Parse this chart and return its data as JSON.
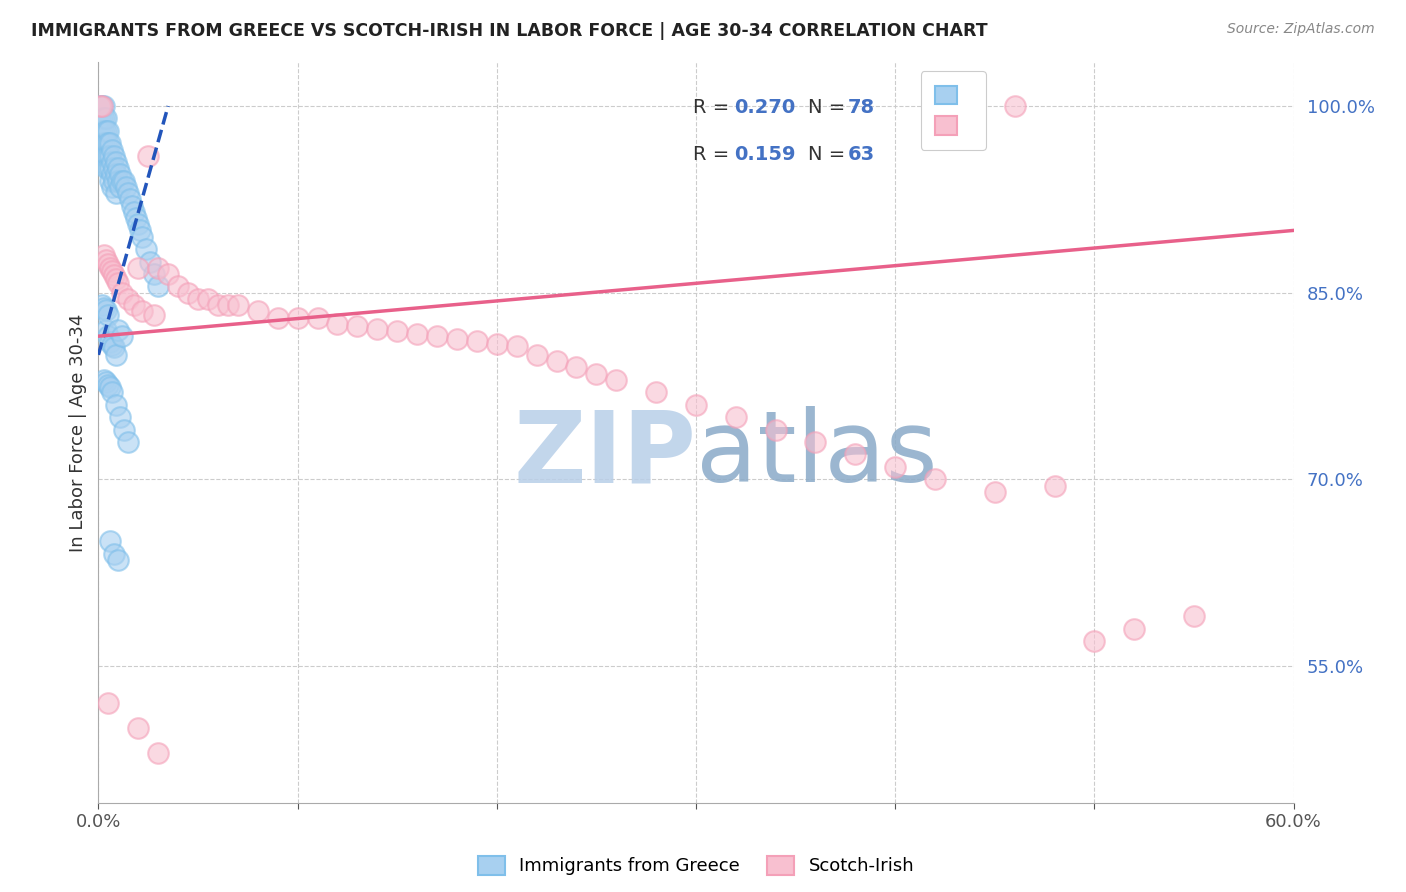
{
  "title": "IMMIGRANTS FROM GREECE VS SCOTCH-IRISH IN LABOR FORCE | AGE 30-34 CORRELATION CHART",
  "source": "Source: ZipAtlas.com",
  "ylabel": "In Labor Force | Age 30-34",
  "xlim": [
    0.0,
    0.6
  ],
  "ylim": [
    0.44,
    1.035
  ],
  "xtick_positions": [
    0.0,
    0.1,
    0.2,
    0.3,
    0.4,
    0.5,
    0.6
  ],
  "xticklabels": [
    "0.0%",
    "",
    "",
    "",
    "",
    "",
    "60.0%"
  ],
  "yticks_right": [
    0.55,
    0.7,
    0.85,
    1.0
  ],
  "ytick_labels_right": [
    "55.0%",
    "70.0%",
    "85.0%",
    "100.0%"
  ],
  "blue_color": "#7fbfea",
  "pink_color": "#f4a0b8",
  "blue_line_color": "#2255bb",
  "pink_line_color": "#e8608a",
  "blue_fill_color": "#a8d0f0",
  "pink_fill_color": "#f8c0d0",
  "watermark_color": "#d0e4f5",
  "watermark_zip_color": "#c0d8f0",
  "watermark_atlas_color": "#90b8d8",
  "greece_x": [
    0.001,
    0.001,
    0.001,
    0.002,
    0.002,
    0.002,
    0.002,
    0.003,
    0.003,
    0.003,
    0.003,
    0.003,
    0.004,
    0.004,
    0.004,
    0.004,
    0.004,
    0.005,
    0.005,
    0.005,
    0.005,
    0.006,
    0.006,
    0.006,
    0.006,
    0.007,
    0.007,
    0.007,
    0.007,
    0.008,
    0.008,
    0.008,
    0.009,
    0.009,
    0.009,
    0.01,
    0.01,
    0.011,
    0.011,
    0.012,
    0.013,
    0.014,
    0.015,
    0.016,
    0.017,
    0.018,
    0.019,
    0.02,
    0.021,
    0.022,
    0.024,
    0.026,
    0.028,
    0.03,
    0.004,
    0.005,
    0.006,
    0.007,
    0.008,
    0.009,
    0.002,
    0.003,
    0.004,
    0.005,
    0.01,
    0.012,
    0.003,
    0.004,
    0.005,
    0.006,
    0.007,
    0.009,
    0.011,
    0.013,
    0.015,
    0.006,
    0.008,
    0.01
  ],
  "greece_y": [
    1.0,
    0.99,
    0.98,
    1.0,
    0.99,
    0.98,
    0.97,
    1.0,
    0.99,
    0.98,
    0.97,
    0.96,
    0.99,
    0.98,
    0.97,
    0.96,
    0.95,
    0.98,
    0.97,
    0.96,
    0.95,
    0.97,
    0.96,
    0.95,
    0.94,
    0.965,
    0.955,
    0.945,
    0.935,
    0.96,
    0.95,
    0.94,
    0.955,
    0.945,
    0.93,
    0.95,
    0.94,
    0.945,
    0.935,
    0.94,
    0.94,
    0.935,
    0.93,
    0.925,
    0.92,
    0.915,
    0.91,
    0.905,
    0.9,
    0.895,
    0.885,
    0.875,
    0.865,
    0.855,
    0.82,
    0.815,
    0.81,
    0.808,
    0.806,
    0.8,
    0.84,
    0.838,
    0.836,
    0.832,
    0.82,
    0.815,
    0.78,
    0.778,
    0.776,
    0.774,
    0.77,
    0.76,
    0.75,
    0.74,
    0.73,
    0.65,
    0.64,
    0.635
  ],
  "scotch_x": [
    0.001,
    0.002,
    0.003,
    0.004,
    0.005,
    0.006,
    0.007,
    0.008,
    0.009,
    0.01,
    0.012,
    0.015,
    0.018,
    0.02,
    0.022,
    0.025,
    0.028,
    0.03,
    0.035,
    0.04,
    0.045,
    0.05,
    0.055,
    0.06,
    0.065,
    0.07,
    0.08,
    0.09,
    0.1,
    0.11,
    0.12,
    0.13,
    0.14,
    0.15,
    0.16,
    0.17,
    0.18,
    0.19,
    0.2,
    0.21,
    0.22,
    0.23,
    0.24,
    0.25,
    0.26,
    0.28,
    0.3,
    0.32,
    0.34,
    0.36,
    0.38,
    0.4,
    0.42,
    0.45,
    0.48,
    0.5,
    0.52,
    0.55,
    0.42,
    0.46,
    0.005,
    0.02,
    0.03
  ],
  "scotch_y": [
    1.0,
    1.0,
    0.88,
    0.876,
    0.873,
    0.87,
    0.867,
    0.864,
    0.861,
    0.858,
    0.85,
    0.845,
    0.84,
    0.87,
    0.835,
    0.96,
    0.832,
    0.87,
    0.865,
    0.855,
    0.85,
    0.845,
    0.845,
    0.84,
    0.84,
    0.84,
    0.835,
    0.83,
    0.83,
    0.83,
    0.825,
    0.823,
    0.821,
    0.819,
    0.817,
    0.815,
    0.813,
    0.811,
    0.809,
    0.807,
    0.8,
    0.795,
    0.79,
    0.785,
    0.78,
    0.77,
    0.76,
    0.75,
    0.74,
    0.73,
    0.72,
    0.71,
    0.7,
    0.69,
    0.695,
    0.57,
    0.58,
    0.59,
    1.0,
    1.0,
    0.52,
    0.5,
    0.48
  ]
}
